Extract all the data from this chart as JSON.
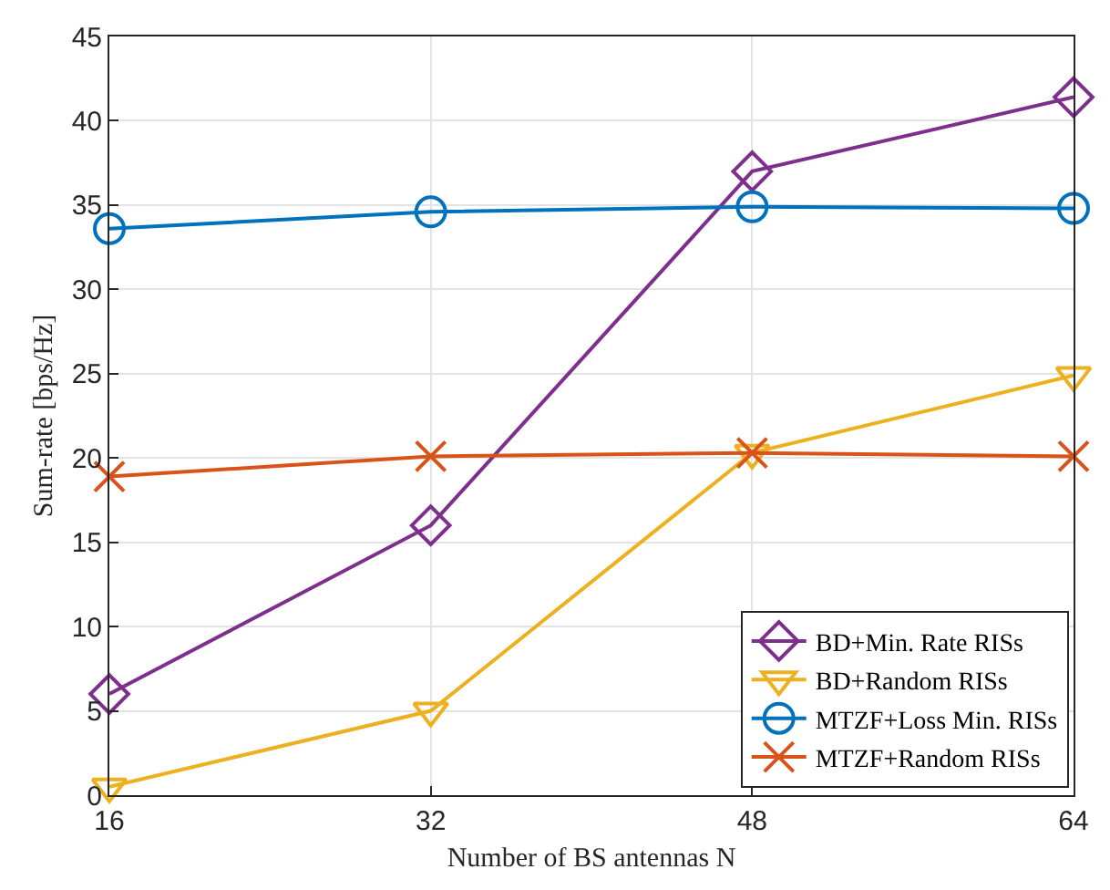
{
  "chart_data": {
    "type": "line",
    "xlabel": "Number of BS antennas N",
    "ylabel": "Sum-rate [bps/Hz]",
    "x": [
      16,
      32,
      48,
      64
    ],
    "series": [
      {
        "name": "BD+Min. Rate RISs",
        "color": "#7e2f8e",
        "marker": "diamond",
        "values": [
          6,
          16,
          37,
          41.4
        ]
      },
      {
        "name": "BD+Random RISs",
        "color": "#edb120",
        "marker": "triangle",
        "values": [
          0.5,
          5,
          20.3,
          24.9
        ]
      },
      {
        "name": "MTZF+Loss Min. RISs",
        "color": "#0072bd",
        "marker": "circle",
        "values": [
          33.6,
          34.6,
          34.9,
          34.8
        ]
      },
      {
        "name": "MTZF+Random RISs",
        "color": "#d95319",
        "marker": "cross",
        "values": [
          18.9,
          20.1,
          20.3,
          20.1
        ]
      }
    ],
    "xlim": [
      16,
      64
    ],
    "xticks": [
      16,
      32,
      48,
      64
    ],
    "ylim": [
      0,
      45
    ],
    "yticks": [
      0,
      5,
      10,
      15,
      20,
      25,
      30,
      35,
      40,
      45
    ],
    "grid": true,
    "legend": "bottom right",
    "line_style": "solid"
  }
}
